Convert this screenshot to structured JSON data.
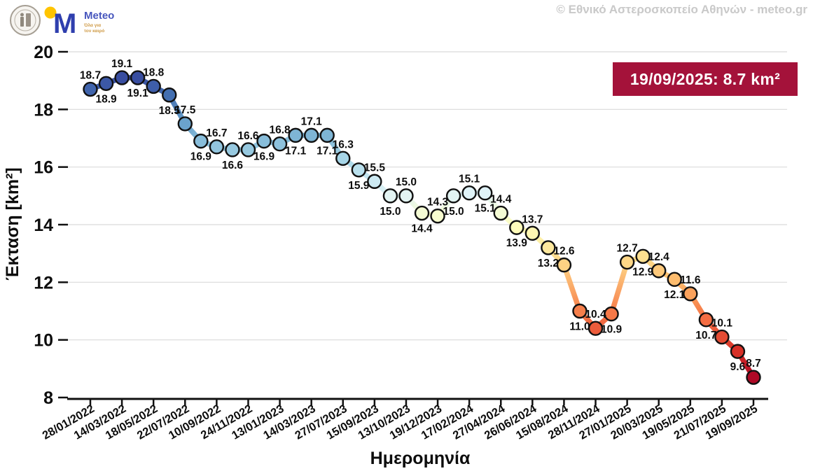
{
  "header": {
    "observatory_seal": "national-observatory-of-athens-seal",
    "meteo": {
      "wordmark": "Meteo",
      "tagline_line1": "Όλα για",
      "tagline_line2": "τον καιρό",
      "dot_color": "#ffc400",
      "m_color": "#2f3fae",
      "wordmark_color": "#4756bd",
      "tagline_color": "#cf9a45"
    },
    "copyright": {
      "text": "© Εθνικό Αστεροσκοπείο Αθηνών - meteo.gr",
      "color": "#c9c9c9"
    }
  },
  "badge": {
    "text": "19/09/2025: 8.7 km²",
    "bg_color": "#a4123a",
    "text_color": "#ffffff"
  },
  "chart_data": {
    "type": "line",
    "xlabel": "Ημερομηνία",
    "ylabel": "Έκταση [km²]",
    "ylim": [
      8,
      20
    ],
    "yticks": [
      20,
      18,
      16,
      14,
      12,
      10,
      8
    ],
    "grid": true,
    "grid_color": "#d9d9d9",
    "axis_color": "#111111",
    "marker_edge_color": "#111111",
    "x_tick_every_n_points": 2,
    "x_tick_labels": [
      "28/01/2022",
      "14/03/2022",
      "18/05/2022",
      "22/07/2022",
      "10/09/2022",
      "24/11/2022",
      "13/01/2023",
      "14/03/2023",
      "27/07/2023",
      "15/09/2023",
      "13/10/2023",
      "19/12/2023",
      "17/02/2024",
      "27/04/2024",
      "26/06/2024",
      "15/08/2024",
      "28/11/2024",
      "27/01/2025",
      "20/03/2025",
      "19/05/2025",
      "21/07/2025",
      "19/09/2025"
    ],
    "values": [
      18.7,
      18.9,
      19.1,
      19.1,
      18.8,
      18.5,
      17.5,
      16.9,
      16.7,
      16.6,
      16.6,
      16.9,
      16.8,
      17.1,
      17.1,
      17.1,
      16.3,
      15.9,
      15.5,
      15.0,
      15.0,
      14.4,
      14.3,
      15.0,
      15.1,
      15.1,
      14.4,
      13.9,
      13.7,
      13.2,
      12.6,
      11.0,
      10.4,
      10.9,
      12.7,
      12.9,
      12.4,
      12.1,
      11.6,
      10.7,
      10.1,
      9.6,
      8.7
    ],
    "label_decimals": 1,
    "label_alternation": [
      "above",
      "below"
    ],
    "colormap": {
      "name": "RdYlBu_r",
      "vmin": 8.5,
      "vmax": 19.5,
      "stops": [
        "#313695",
        "#4575b4",
        "#74add1",
        "#abd9e9",
        "#e0f3f8",
        "#ffffbf",
        "#fee090",
        "#fdae61",
        "#f46d43",
        "#d73027",
        "#a50026"
      ]
    }
  }
}
